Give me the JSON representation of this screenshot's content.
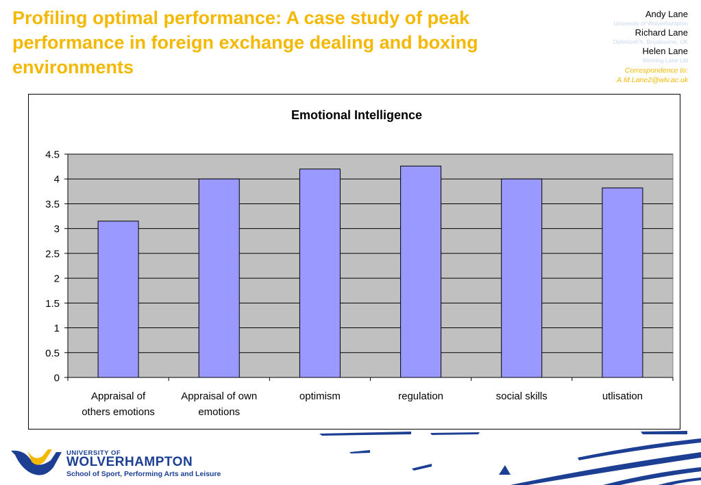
{
  "header": {
    "title": "Profiling optimal performance: A case study of peak performance in foreign exchange dealing and boxing environments",
    "authors": [
      {
        "name": "Andy Lane",
        "affiliation": "University of Wolverhampton"
      },
      {
        "name": "Richard Lane",
        "affiliation": "OptimizeFX, Broxbourne, UK"
      },
      {
        "name": "Helen Lane",
        "affiliation": "Winning Lane Ltd"
      }
    ],
    "correspondence_label": "Correspondence to:",
    "correspondence_email": "A.M.Lane2@wlv.ac.uk"
  },
  "chart_data": {
    "type": "bar",
    "title": "Emotional Intelligence",
    "categories": [
      [
        "Appraisal of",
        "others emotions"
      ],
      [
        "Appraisal of own",
        "emotions"
      ],
      [
        "optimism"
      ],
      [
        "regulation"
      ],
      [
        "social skills"
      ],
      [
        "utlisation"
      ]
    ],
    "values": [
      3.15,
      4.0,
      4.2,
      4.26,
      4.0,
      3.82
    ],
    "yticks": [
      "0",
      "0.5",
      "1",
      "1.5",
      "2",
      "2.5",
      "3",
      "3.5",
      "4",
      "4.5"
    ],
    "ylim": [
      0,
      4.5
    ],
    "grid": true,
    "colors": {
      "bar": "#9999ff",
      "plot_bg": "#c0c0c0",
      "bar_stroke": "#000000"
    }
  },
  "footer": {
    "logo_line1": "UNIVERSITY OF",
    "logo_line2": "WOLVERHAMPTON",
    "logo_line3": "School of Sport, Performing Arts and Leisure",
    "logo_colors": {
      "blue": "#1c3f94",
      "yellow": "#f5b800"
    }
  }
}
